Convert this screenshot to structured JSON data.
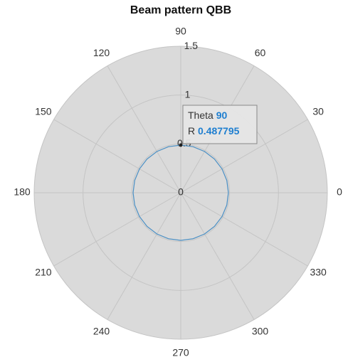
{
  "chart_data": {
    "type": "polar",
    "title": "Beam pattern QBB",
    "theta": [
      0,
      15,
      30,
      45,
      60,
      75,
      90,
      105,
      120,
      135,
      150,
      165,
      180,
      195,
      210,
      225,
      240,
      255,
      270,
      285,
      300,
      315,
      330,
      345,
      360
    ],
    "series": [
      {
        "color": "#4a8fc4",
        "values": [
          0.487795,
          0.487795,
          0.487795,
          0.487795,
          0.487795,
          0.487795,
          0.487795,
          0.487795,
          0.487795,
          0.487795,
          0.487795,
          0.487795,
          0.487795,
          0.487795,
          0.487795,
          0.487795,
          0.487795,
          0.487795,
          0.487795,
          0.487795,
          0.487795,
          0.487795,
          0.487795,
          0.487795,
          0.487795
        ]
      }
    ],
    "rlim": [
      0,
      1.5
    ],
    "rticks": [
      0,
      0.5,
      1,
      1.5
    ],
    "thetaticks": [
      0,
      30,
      60,
      90,
      120,
      150,
      180,
      210,
      240,
      270,
      300,
      330
    ],
    "grid": true,
    "background": "#dadada",
    "datatip": {
      "theta_label": "Theta",
      "theta": 90,
      "r_label": "R",
      "r": 0.487795
    }
  }
}
